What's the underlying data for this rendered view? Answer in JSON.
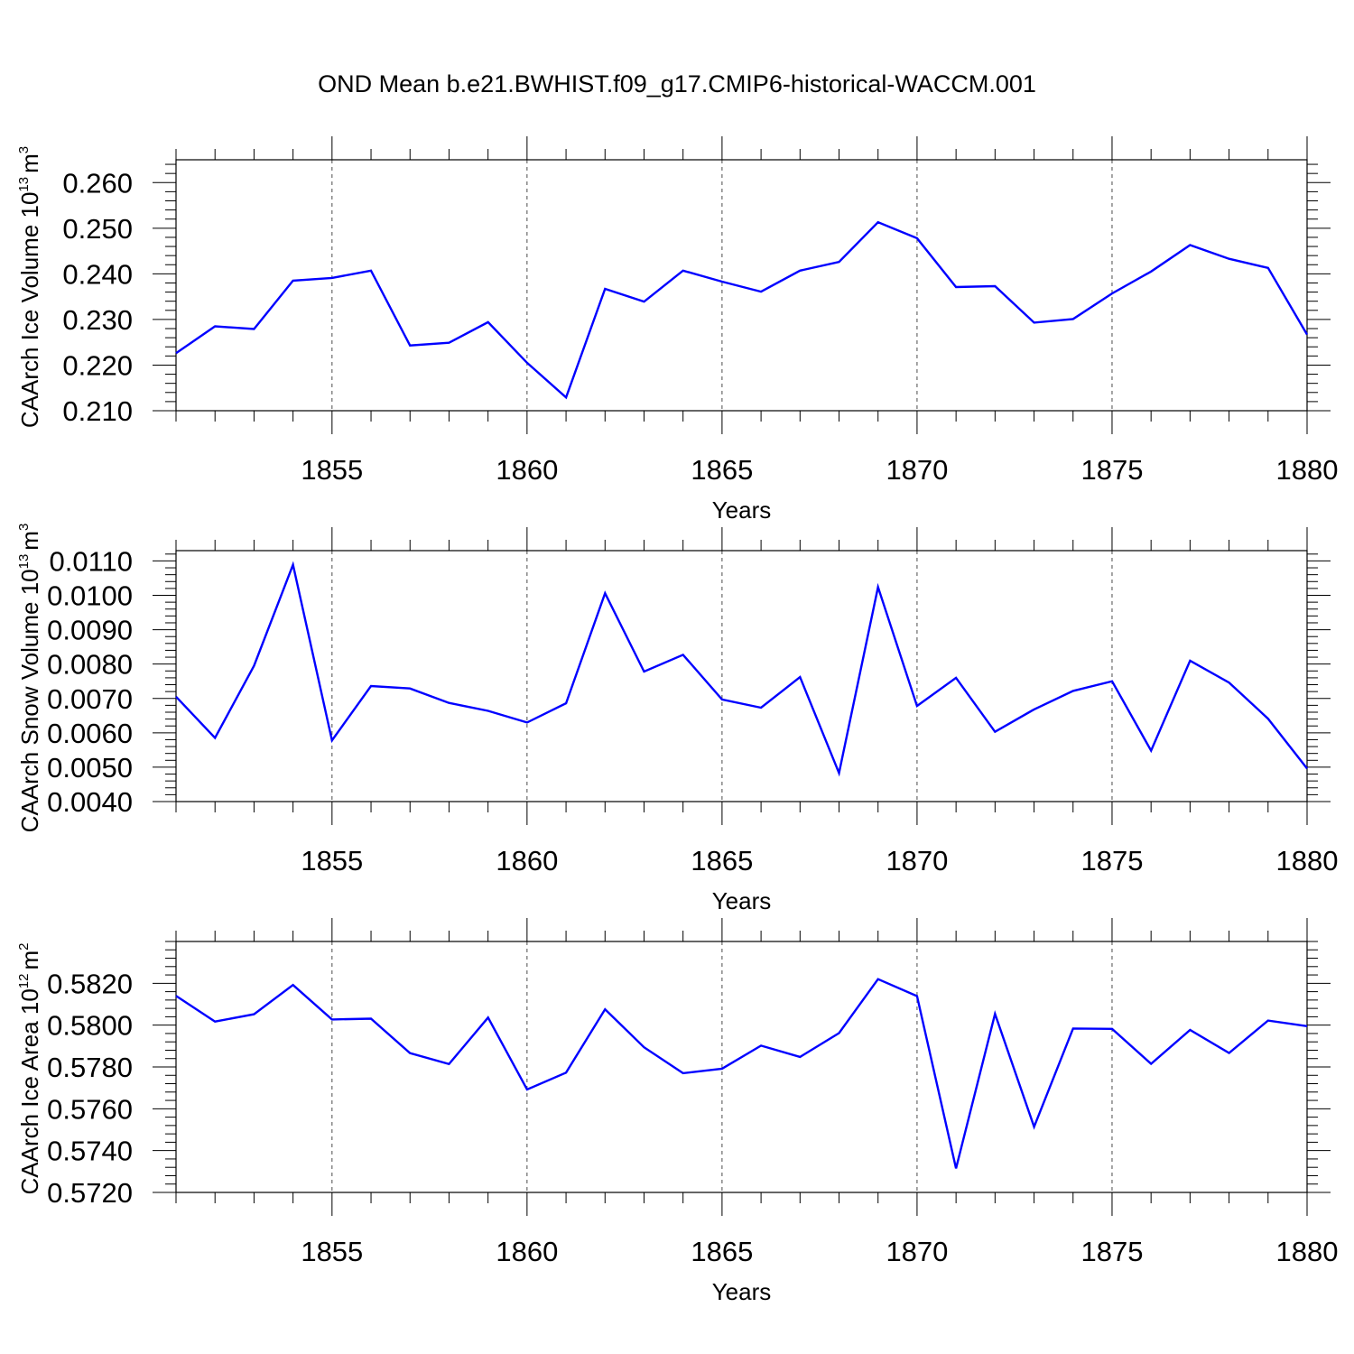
{
  "title": "OND Mean b.e21.BWHIST.f09_g17.CMIP6-historical-WACCM.001",
  "colors": {
    "series": "#0000ff",
    "axis": "#000000",
    "grid": "#000000"
  },
  "chart_data": [
    {
      "type": "line",
      "xlabel": "Years",
      "ylabel_main": "CAArch Ice Volume 10",
      "ylabel_exp": "13",
      "ylabel_unit": "m",
      "ylabel_unit_exp": "3",
      "xlim": [
        1851,
        1880
      ],
      "ylim": [
        0.21,
        0.265
      ],
      "yticks": [
        "0.210",
        "0.220",
        "0.230",
        "0.240",
        "0.250",
        "0.260"
      ],
      "yticks_values": [
        0.21,
        0.22,
        0.23,
        0.24,
        0.25,
        0.26
      ],
      "xticks": [
        "1855",
        "1860",
        "1865",
        "1870",
        "1875",
        "1880"
      ],
      "x": [
        1851,
        1852,
        1853,
        1854,
        1855,
        1856,
        1857,
        1858,
        1859,
        1860,
        1861,
        1862,
        1863,
        1864,
        1865,
        1866,
        1867,
        1868,
        1869,
        1870,
        1871,
        1872,
        1873,
        1874,
        1875,
        1876,
        1877,
        1878,
        1879,
        1880
      ],
      "values": [
        0.2226,
        0.2285,
        0.2279,
        0.2385,
        0.2391,
        0.2407,
        0.2243,
        0.2249,
        0.2294,
        0.2205,
        0.2129,
        0.2367,
        0.2339,
        0.2407,
        0.2383,
        0.2361,
        0.2407,
        0.2426,
        0.2513,
        0.2478,
        0.2371,
        0.2373,
        0.2293,
        0.2301,
        0.2357,
        0.2405,
        0.2463,
        0.2433,
        0.2413,
        0.2267
      ]
    },
    {
      "type": "line",
      "xlabel": "Years",
      "ylabel_main": "CAArch Snow Volume 10",
      "ylabel_exp": "13",
      "ylabel_unit": "m",
      "ylabel_unit_exp": "3",
      "xlim": [
        1851,
        1880
      ],
      "ylim": [
        0.004,
        0.0113
      ],
      "yticks": [
        "0.0040",
        "0.0050",
        "0.0060",
        "0.0070",
        "0.0080",
        "0.0090",
        "0.0100",
        "0.0110"
      ],
      "yticks_values": [
        0.004,
        0.005,
        0.006,
        0.007,
        0.008,
        0.009,
        0.01,
        0.011
      ],
      "xticks": [
        "1855",
        "1860",
        "1865",
        "1870",
        "1875",
        "1880"
      ],
      "x": [
        1851,
        1852,
        1853,
        1854,
        1855,
        1856,
        1857,
        1858,
        1859,
        1860,
        1861,
        1862,
        1863,
        1864,
        1865,
        1866,
        1867,
        1868,
        1869,
        1870,
        1871,
        1872,
        1873,
        1874,
        1875,
        1876,
        1877,
        1878,
        1879,
        1880
      ],
      "values": [
        0.00705,
        0.00585,
        0.00795,
        0.01089,
        0.00578,
        0.00736,
        0.00729,
        0.00687,
        0.00664,
        0.0063,
        0.00686,
        0.01006,
        0.00778,
        0.00827,
        0.00697,
        0.00673,
        0.00762,
        0.00483,
        0.01024,
        0.00678,
        0.0076,
        0.00603,
        0.00668,
        0.00722,
        0.0075,
        0.00548,
        0.0081,
        0.00746,
        0.00641,
        0.00496
      ]
    },
    {
      "type": "line",
      "xlabel": "Years",
      "ylabel_main": "CAArch Ice Area 10",
      "ylabel_exp": "12",
      "ylabel_unit": "m",
      "ylabel_unit_exp": "2",
      "xlim": [
        1851,
        1880
      ],
      "ylim": [
        0.572,
        0.584
      ],
      "yticks": [
        "0.5720",
        "0.5740",
        "0.5760",
        "0.5780",
        "0.5800",
        "0.5820"
      ],
      "yticks_values": [
        0.572,
        0.574,
        0.576,
        0.578,
        0.58,
        0.582
      ],
      "xticks": [
        "1855",
        "1860",
        "1865",
        "1870",
        "1875",
        "1880"
      ],
      "x": [
        1851,
        1852,
        1853,
        1854,
        1855,
        1856,
        1857,
        1858,
        1859,
        1860,
        1861,
        1862,
        1863,
        1864,
        1865,
        1866,
        1867,
        1868,
        1869,
        1870,
        1871,
        1872,
        1873,
        1874,
        1875,
        1876,
        1877,
        1878,
        1879,
        1880
      ],
      "values": [
        0.5814,
        0.58017,
        0.58052,
        0.58192,
        0.58027,
        0.58031,
        0.57866,
        0.57814,
        0.58036,
        0.57692,
        0.57773,
        0.58076,
        0.57894,
        0.5777,
        0.57792,
        0.57902,
        0.57848,
        0.57962,
        0.5822,
        0.58139,
        0.57315,
        0.58054,
        0.57514,
        0.57984,
        0.57982,
        0.57815,
        0.57977,
        0.57867,
        0.58022,
        0.57995
      ]
    }
  ]
}
